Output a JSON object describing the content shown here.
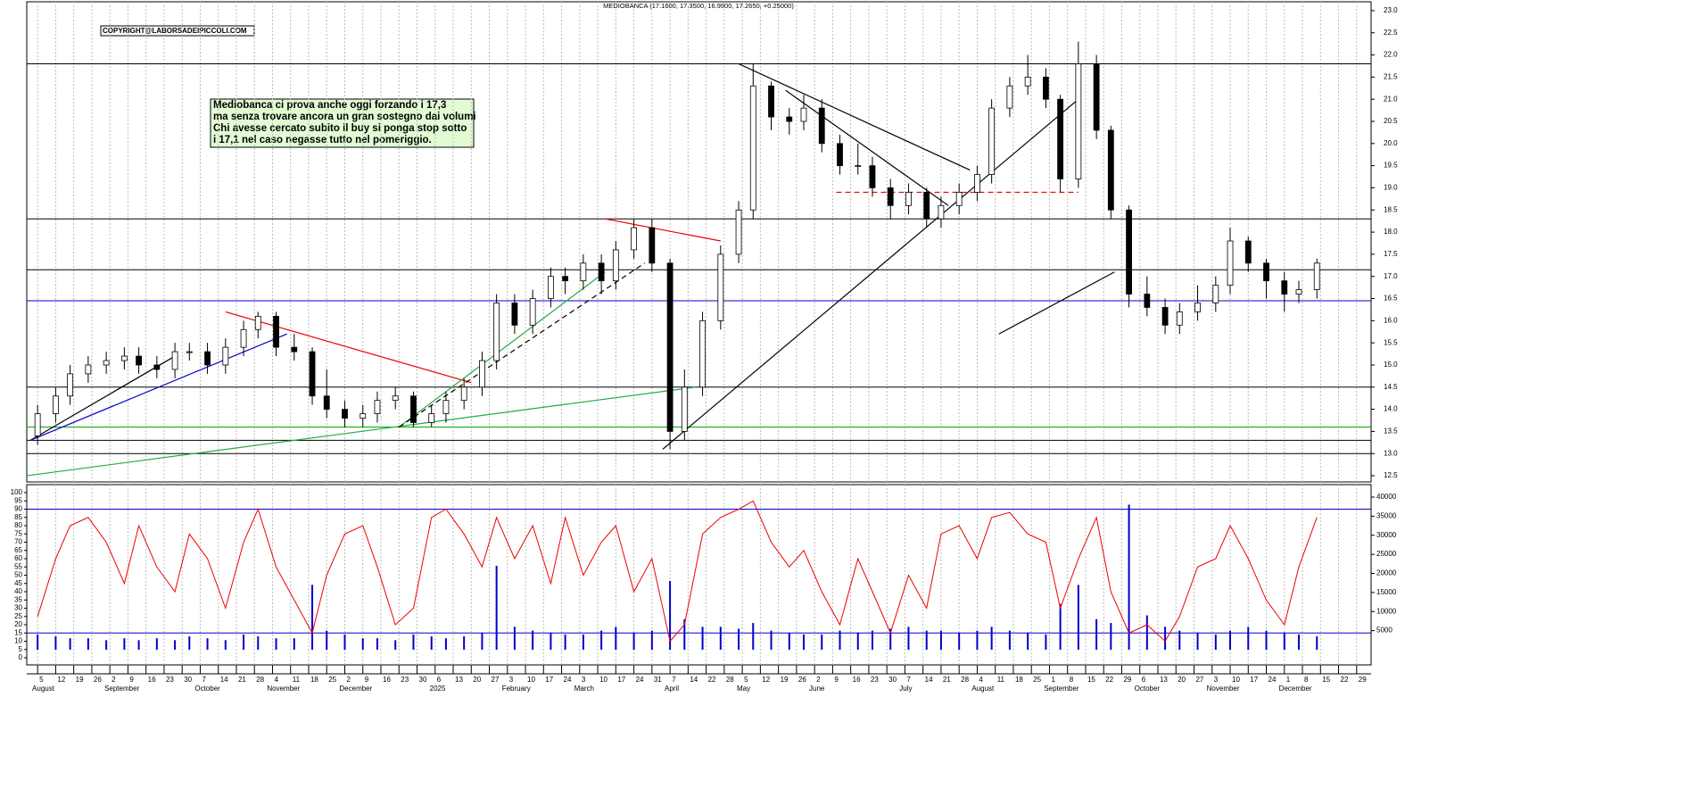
{
  "chart_data": {
    "type": "candlestick",
    "title": "MEDIOBANCA (17.1600, 17.3500, 16.9900, 17.2650, +0.25000)",
    "copyright": "COPYRIGHT@LABORSADEIPICCOLI.COM",
    "annotation": [
      "Mediobanca ci prova anche oggi forzando i 17,3",
      "ma senza trovare ancora un gran sostegno dai volumi",
      "Chi avesse cercato subito il buy si ponga stop sotto",
      "i 17,1 nel caso negasse tutto nel pomeriggio."
    ],
    "up_color": "#ffffff",
    "down_color": "#000000",
    "grid": "x",
    "xlim": [
      0,
      372
    ],
    "ylim": [
      12.36,
      23.2
    ],
    "yticks": [
      {
        "value": 12.5,
        "label": "12.5"
      },
      {
        "value": 13,
        "label": "13.0"
      },
      {
        "value": 13.5,
        "label": "13.5"
      },
      {
        "value": 14,
        "label": "14.0"
      },
      {
        "value": 14.5,
        "label": "14.5"
      },
      {
        "value": 15,
        "label": "15.0"
      },
      {
        "value": 15.5,
        "label": "15.5"
      },
      {
        "value": 16,
        "label": "16.0"
      },
      {
        "value": 16.5,
        "label": "16.5"
      },
      {
        "value": 17,
        "label": "17.0"
      },
      {
        "value": 17.5,
        "label": "17.5"
      },
      {
        "value": 18,
        "label": "18.0"
      },
      {
        "value": 18.5,
        "label": "18.5"
      },
      {
        "value": 19,
        "label": "19.0"
      },
      {
        "value": 19.5,
        "label": "19.5"
      },
      {
        "value": 20,
        "label": "20.0"
      },
      {
        "value": 20.5,
        "label": "20.5"
      },
      {
        "value": 21,
        "label": "21.0"
      },
      {
        "value": 21.5,
        "label": "21.5"
      },
      {
        "value": 22,
        "label": "22.0"
      },
      {
        "value": 22.5,
        "label": "22.5"
      },
      {
        "value": 23,
        "label": "23.0"
      }
    ],
    "xticks": [
      {
        "value": 3,
        "label": "5"
      },
      {
        "value": 8,
        "label": "12"
      },
      {
        "value": 13,
        "label": "19"
      },
      {
        "value": 18,
        "label": "26"
      },
      {
        "value": 23,
        "label": "2"
      },
      {
        "value": 28,
        "label": "9"
      },
      {
        "value": 33,
        "label": "16"
      },
      {
        "value": 38,
        "label": "23"
      },
      {
        "value": 43,
        "label": "30"
      },
      {
        "value": 48,
        "label": "7"
      },
      {
        "value": 53,
        "label": "14"
      },
      {
        "value": 58,
        "label": "21"
      },
      {
        "value": 63,
        "label": "28"
      },
      {
        "value": 68,
        "label": "4"
      },
      {
        "value": 73,
        "label": "11"
      },
      {
        "value": 78,
        "label": "18"
      },
      {
        "value": 83,
        "label": "25"
      },
      {
        "value": 88,
        "label": "2"
      },
      {
        "value": 93,
        "label": "9"
      },
      {
        "value": 98,
        "label": "16"
      },
      {
        "value": 103,
        "label": "23"
      },
      {
        "value": 108,
        "label": "30"
      },
      {
        "value": 113,
        "label": "6"
      },
      {
        "value": 118,
        "label": "13"
      },
      {
        "value": 123,
        "label": "20"
      },
      {
        "value": 128,
        "label": "27"
      },
      {
        "value": 133,
        "label": "3"
      },
      {
        "value": 138,
        "label": "10"
      },
      {
        "value": 143,
        "label": "17"
      },
      {
        "value": 148,
        "label": "24"
      },
      {
        "value": 153,
        "label": "3"
      },
      {
        "value": 158,
        "label": "10"
      },
      {
        "value": 163,
        "label": "17"
      },
      {
        "value": 168,
        "label": "24"
      },
      {
        "value": 173,
        "label": "31"
      },
      {
        "value": 178,
        "label": "7"
      },
      {
        "value": 183,
        "label": "14"
      },
      {
        "value": 188,
        "label": "22"
      },
      {
        "value": 193,
        "label": "28"
      },
      {
        "value": 198,
        "label": "5"
      },
      {
        "value": 203,
        "label": "12"
      },
      {
        "value": 208,
        "label": "19"
      },
      {
        "value": 213,
        "label": "26"
      },
      {
        "value": 218,
        "label": "2"
      },
      {
        "value": 223,
        "label": "9"
      },
      {
        "value": 228,
        "label": "16"
      },
      {
        "value": 233,
        "label": "23"
      },
      {
        "value": 238,
        "label": "30"
      },
      {
        "value": 243,
        "label": "7"
      },
      {
        "value": 248,
        "label": "14"
      },
      {
        "value": 253,
        "label": "21"
      },
      {
        "value": 258,
        "label": "28"
      },
      {
        "value": 263,
        "label": "4"
      },
      {
        "value": 268,
        "label": "11"
      },
      {
        "value": 273,
        "label": "18"
      },
      {
        "value": 278,
        "label": "25"
      },
      {
        "value": 283,
        "label": "1"
      },
      {
        "value": 288,
        "label": "8"
      },
      {
        "value": 293,
        "label": "15"
      },
      {
        "value": 298,
        "label": "22"
      },
      {
        "value": 303,
        "label": "29"
      },
      {
        "value": 308,
        "label": "6"
      },
      {
        "value": 313,
        "label": "13"
      },
      {
        "value": 318,
        "label": "20"
      },
      {
        "value": 323,
        "label": "27"
      },
      {
        "value": 328,
        "label": "3"
      },
      {
        "value": 333,
        "label": "10"
      },
      {
        "value": 338,
        "label": "17"
      },
      {
        "value": 343,
        "label": "24"
      },
      {
        "value": 348,
        "label": "1"
      },
      {
        "value": 353,
        "label": "8"
      },
      {
        "value": 358,
        "label": "15"
      },
      {
        "value": 363,
        "label": "22"
      },
      {
        "value": 368,
        "label": "29"
      }
    ],
    "months": [
      {
        "value": 1,
        "label": "August"
      },
      {
        "value": 21,
        "label": "September"
      },
      {
        "value": 46,
        "label": "October"
      },
      {
        "value": 66,
        "label": "November"
      },
      {
        "value": 86,
        "label": "December"
      },
      {
        "value": 111,
        "label": "2025"
      },
      {
        "value": 131,
        "label": "February"
      },
      {
        "value": 151,
        "label": "March"
      },
      {
        "value": 176,
        "label": "April"
      },
      {
        "value": 196,
        "label": "May"
      },
      {
        "value": 216,
        "label": "June"
      },
      {
        "value": 241,
        "label": "July"
      },
      {
        "value": 261,
        "label": "August"
      },
      {
        "value": 281,
        "label": "September"
      },
      {
        "value": 306,
        "label": "October"
      },
      {
        "value": 326,
        "label": "November"
      },
      {
        "value": 346,
        "label": "December"
      }
    ],
    "x": [
      3,
      8,
      12,
      17,
      22,
      27,
      31,
      36,
      41,
      45,
      50,
      55,
      60,
      64,
      69,
      74,
      79,
      83,
      88,
      93,
      97,
      102,
      107,
      112,
      116,
      121,
      126,
      130,
      135,
      140,
      145,
      149,
      154,
      159,
      163,
      168,
      173,
      178,
      182,
      187,
      192,
      197,
      201,
      206,
      211,
      215,
      220,
      225,
      230,
      234,
      239,
      244,
      249,
      253,
      258,
      263,
      267,
      272,
      277,
      282,
      286,
      291,
      296,
      300,
      305,
      310,
      315,
      319,
      324,
      329,
      333,
      338,
      343,
      348,
      352,
      357
    ],
    "ohlc": [
      [
        13.4,
        14.1,
        13.2,
        13.9
      ],
      [
        13.9,
        14.5,
        13.7,
        14.3
      ],
      [
        14.3,
        15.0,
        14.1,
        14.8
      ],
      [
        14.8,
        15.2,
        14.6,
        15.0
      ],
      [
        15.0,
        15.3,
        14.8,
        15.1
      ],
      [
        15.1,
        15.4,
        14.9,
        15.2
      ],
      [
        15.2,
        15.4,
        14.8,
        15.0
      ],
      [
        15.0,
        15.2,
        14.7,
        14.9
      ],
      [
        14.9,
        15.5,
        14.7,
        15.3
      ],
      [
        15.3,
        15.5,
        15.1,
        15.3
      ],
      [
        15.3,
        15.5,
        14.8,
        15.0
      ],
      [
        15.0,
        15.6,
        14.8,
        15.4
      ],
      [
        15.4,
        16.0,
        15.2,
        15.8
      ],
      [
        15.8,
        16.2,
        15.6,
        16.1
      ],
      [
        16.1,
        16.2,
        15.2,
        15.4
      ],
      [
        15.4,
        15.7,
        15.1,
        15.3
      ],
      [
        15.3,
        15.4,
        14.1,
        14.3
      ],
      [
        14.3,
        14.9,
        13.8,
        14.0
      ],
      [
        14.0,
        14.2,
        13.6,
        13.8
      ],
      [
        13.8,
        14.1,
        13.6,
        13.9
      ],
      [
        13.9,
        14.4,
        13.7,
        14.2
      ],
      [
        14.2,
        14.5,
        14.0,
        14.3
      ],
      [
        14.3,
        14.4,
        13.6,
        13.7
      ],
      [
        13.7,
        14.1,
        13.6,
        13.9
      ],
      [
        13.9,
        14.4,
        13.7,
        14.2
      ],
      [
        14.2,
        14.7,
        14.0,
        14.5
      ],
      [
        14.5,
        15.3,
        14.3,
        15.1
      ],
      [
        15.1,
        16.6,
        14.9,
        16.4
      ],
      [
        16.4,
        16.6,
        15.7,
        15.9
      ],
      [
        15.9,
        16.7,
        15.7,
        16.5
      ],
      [
        16.5,
        17.2,
        16.3,
        17.0
      ],
      [
        17.0,
        17.2,
        16.6,
        16.9
      ],
      [
        16.9,
        17.5,
        16.7,
        17.3
      ],
      [
        17.3,
        17.5,
        16.6,
        16.9
      ],
      [
        16.9,
        17.8,
        16.7,
        17.6
      ],
      [
        17.6,
        18.3,
        17.4,
        18.1
      ],
      [
        18.1,
        18.3,
        17.1,
        17.3
      ],
      [
        17.3,
        17.4,
        13.1,
        13.5
      ],
      [
        13.5,
        14.9,
        13.3,
        14.5
      ],
      [
        14.5,
        16.2,
        14.3,
        16.0
      ],
      [
        16.0,
        17.7,
        15.8,
        17.5
      ],
      [
        17.5,
        18.7,
        17.3,
        18.5
      ],
      [
        18.5,
        21.8,
        18.3,
        21.3
      ],
      [
        21.3,
        21.4,
        20.3,
        20.6
      ],
      [
        20.6,
        20.8,
        20.2,
        20.5
      ],
      [
        20.5,
        21.1,
        20.3,
        20.8
      ],
      [
        20.8,
        21.0,
        19.8,
        20.0
      ],
      [
        20.0,
        20.2,
        19.3,
        19.5
      ],
      [
        19.5,
        20.0,
        19.3,
        19.5
      ],
      [
        19.5,
        19.7,
        18.8,
        19.0
      ],
      [
        19.0,
        19.2,
        18.3,
        18.6
      ],
      [
        18.6,
        19.1,
        18.4,
        18.9
      ],
      [
        18.9,
        19.0,
        18.1,
        18.3
      ],
      [
        18.3,
        18.8,
        18.1,
        18.6
      ],
      [
        18.6,
        19.1,
        18.4,
        18.9
      ],
      [
        18.9,
        19.5,
        18.7,
        19.3
      ],
      [
        19.3,
        21.0,
        19.1,
        20.8
      ],
      [
        20.8,
        21.5,
        20.6,
        21.3
      ],
      [
        21.3,
        22.0,
        21.1,
        21.5
      ],
      [
        21.5,
        21.7,
        20.8,
        21.0
      ],
      [
        21.0,
        21.1,
        18.9,
        19.2
      ],
      [
        19.2,
        22.3,
        19.0,
        21.8
      ],
      [
        21.8,
        22.0,
        20.1,
        20.3
      ],
      [
        20.3,
        20.4,
        18.3,
        18.5
      ],
      [
        18.5,
        18.6,
        16.3,
        16.6
      ],
      [
        16.6,
        17.0,
        16.1,
        16.3
      ],
      [
        16.3,
        16.5,
        15.7,
        15.9
      ],
      [
        15.9,
        16.4,
        15.7,
        16.2
      ],
      [
        16.2,
        16.8,
        16.0,
        16.4
      ],
      [
        16.4,
        17.0,
        16.2,
        16.8
      ],
      [
        16.8,
        18.1,
        16.6,
        17.8
      ],
      [
        17.8,
        17.9,
        17.1,
        17.3
      ],
      [
        17.3,
        17.4,
        16.5,
        16.9
      ],
      [
        16.9,
        17.1,
        16.2,
        16.6
      ],
      [
        16.6,
        16.9,
        16.4,
        16.7
      ],
      [
        16.7,
        17.4,
        16.5,
        17.3
      ]
    ],
    "levels": [
      {
        "value": 21.8,
        "color": "#000000"
      },
      {
        "value": 18.3,
        "color": "#000000"
      },
      {
        "value": 17.15,
        "color": "#000000"
      },
      {
        "value": 16.45,
        "color": "#0000cc"
      },
      {
        "value": 14.5,
        "color": "#000000"
      },
      {
        "value": 13.6,
        "color": "#00aa00"
      },
      {
        "value": 13.3,
        "color": "#000000"
      },
      {
        "value": 13.0,
        "color": "#000000"
      }
    ],
    "trendlines": [
      {
        "color": "#000000",
        "points": [
          [
            1,
            13.3
          ],
          [
            41,
            15.2
          ]
        ]
      },
      {
        "color": "#0000cc",
        "points": [
          [
            1,
            13.3
          ],
          [
            72,
            15.7
          ]
        ]
      },
      {
        "color": "#ee0000",
        "points": [
          [
            55,
            16.2
          ],
          [
            123,
            14.6
          ]
        ]
      },
      {
        "color": "#22aa44",
        "points": [
          [
            0,
            12.5
          ],
          [
            185,
            14.5
          ]
        ]
      },
      {
        "color": "#22aa44",
        "points": [
          [
            103,
            13.6
          ],
          [
            160,
            17.1
          ]
        ]
      },
      {
        "color": "#000000",
        "dash": true,
        "points": [
          [
            103,
            13.6
          ],
          [
            171,
            17.3
          ]
        ]
      },
      {
        "color": "#ee0000",
        "points": [
          [
            160,
            18.3
          ],
          [
            192,
            17.8
          ]
        ]
      },
      {
        "color": "#000000",
        "points": [
          [
            176,
            13.1
          ],
          [
            291,
            21.0
          ]
        ]
      },
      {
        "color": "#000000",
        "points": [
          [
            197,
            21.8
          ],
          [
            261,
            19.4
          ]
        ]
      },
      {
        "color": "#000000",
        "points": [
          [
            210,
            21.2
          ],
          [
            255,
            18.6
          ]
        ]
      },
      {
        "color": "#000000",
        "points": [
          [
            269,
            15.7
          ],
          [
            301,
            17.1
          ]
        ]
      },
      {
        "color": "#ee0000",
        "dash": true,
        "points": [
          [
            224,
            18.9
          ],
          [
            291,
            18.9
          ]
        ]
      }
    ],
    "oscillator": {
      "color": "#ee0000",
      "ylim": [
        0,
        100
      ],
      "yticks": [
        0,
        5,
        10,
        15,
        20,
        25,
        30,
        35,
        40,
        45,
        50,
        55,
        60,
        65,
        70,
        75,
        80,
        85,
        90,
        95,
        100
      ],
      "levels": [
        90,
        15
      ],
      "level_color": "#0000cc",
      "values": [
        25,
        60,
        80,
        85,
        70,
        45,
        80,
        55,
        40,
        75,
        60,
        30,
        70,
        90,
        55,
        35,
        15,
        50,
        75,
        80,
        55,
        20,
        30,
        85,
        90,
        75,
        55,
        85,
        60,
        80,
        45,
        85,
        50,
        70,
        80,
        40,
        60,
        10,
        20,
        75,
        85,
        90,
        95,
        70,
        55,
        65,
        40,
        20,
        60,
        40,
        15,
        50,
        30,
        75,
        80,
        60,
        85,
        88,
        75,
        70,
        30,
        60,
        85,
        40,
        15,
        20,
        10,
        25,
        55,
        60,
        80,
        60,
        35,
        20,
        55,
        85
      ]
    },
    "volume": {
      "color": "#0000cc",
      "ylim": [
        0,
        40000
      ],
      "yticks": [
        5000,
        10000,
        15000,
        20000,
        25000,
        30000,
        35000,
        40000
      ],
      "values": [
        4000,
        3500,
        3000,
        3000,
        2500,
        3000,
        2500,
        3000,
        2500,
        3500,
        3000,
        2500,
        4000,
        3500,
        3000,
        3000,
        17000,
        5000,
        4000,
        3000,
        3000,
        2500,
        4000,
        3500,
        3000,
        3500,
        4500,
        22000,
        6000,
        5000,
        4500,
        4000,
        4000,
        5000,
        6000,
        4500,
        5000,
        18000,
        8000,
        6000,
        6000,
        5500,
        7000,
        5000,
        4500,
        4000,
        4000,
        5000,
        4500,
        5000,
        5500,
        6000,
        5000,
        5000,
        4500,
        5000,
        6000,
        5000,
        4500,
        4000,
        12000,
        17000,
        8000,
        7000,
        38000,
        9000,
        6000,
        5000,
        4500,
        4000,
        5000,
        6000,
        5000,
        4500,
        4000,
        3500
      ]
    }
  }
}
